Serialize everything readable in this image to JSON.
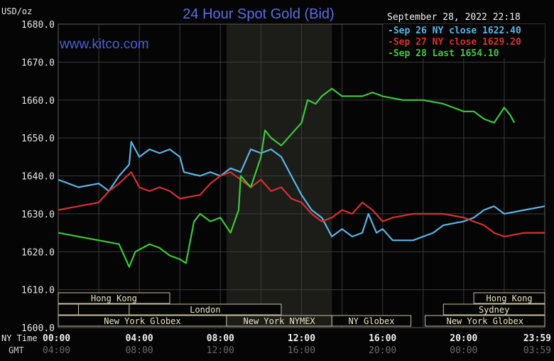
{
  "chart_data": {
    "type": "line",
    "title": "24 Hour Spot Gold (Bid)",
    "watermark": "www.kitco.com",
    "ylabel": "USD/oz",
    "ylim": [
      1600,
      1680
    ],
    "yticks": [
      "1600.0",
      "1610.0",
      "1620.0",
      "1630.0",
      "1640.0",
      "1650.0",
      "1660.0",
      "1670.0",
      "1680.0"
    ],
    "xlim_hours": [
      0,
      24
    ],
    "timestamp": "September 28, 2022 22:18",
    "x_row_labels": {
      "ny": "NY Time",
      "gmt": "GMT"
    },
    "xticks_ny": [
      "00:00",
      "04:00",
      "08:00",
      "12:00",
      "16:00",
      "20:00",
      "23:59"
    ],
    "xticks_gmt": [
      "04:00",
      "08:00",
      "12:00",
      "16:00",
      "20:00",
      "00:00",
      "03:59"
    ],
    "xtick_hours": [
      0,
      4,
      8,
      12,
      16,
      20,
      24
    ],
    "shaded_hours": [
      8.3,
      13.5
    ],
    "grid": true,
    "legend_position": "top-right",
    "series": [
      {
        "name": "Sep 26 NY close 1622.40",
        "color": "#5ab4e6",
        "x": [
          0,
          1,
          2,
          2.5,
          3,
          3.5,
          3.6,
          4,
          4.5,
          5,
          5.5,
          6,
          6.2,
          7,
          7.5,
          8,
          8.5,
          9,
          9.5,
          10,
          10.5,
          11,
          11.5,
          12,
          12.5,
          13,
          13.5,
          14,
          14.5,
          15,
          15.3,
          15.7,
          16,
          16.5,
          17.5,
          18.5,
          19,
          20,
          20.5,
          21,
          21.5,
          22,
          23,
          24
        ],
        "y": [
          1639,
          1637,
          1638,
          1636,
          1640,
          1643,
          1649,
          1645,
          1647,
          1646,
          1647,
          1645,
          1641,
          1640,
          1641,
          1640,
          1642,
          1641,
          1647,
          1646,
          1647,
          1645,
          1640,
          1635,
          1631,
          1629,
          1624,
          1626,
          1624,
          1625,
          1630,
          1625,
          1626,
          1623,
          1623,
          1625,
          1627,
          1628,
          1629,
          1631,
          1632,
          1630,
          1631,
          1632
        ]
      },
      {
        "name": "Sep 27 NY close 1629.20",
        "color": "#d83030",
        "x": [
          0,
          1,
          2,
          2.5,
          3,
          3.6,
          4,
          4.5,
          5,
          5.5,
          6,
          7,
          7.5,
          8,
          8.5,
          9,
          9.5,
          10,
          10.5,
          11,
          11.5,
          12,
          12.5,
          13,
          13.5,
          14,
          14.5,
          15,
          15.5,
          16,
          16.5,
          17.5,
          19,
          20,
          20.5,
          21,
          21.5,
          22,
          23,
          24
        ],
        "y": [
          1631,
          1632,
          1633,
          1636,
          1638,
          1641,
          1637,
          1636,
          1637,
          1636,
          1634,
          1635,
          1638,
          1640,
          1641,
          1639,
          1637,
          1639,
          1636,
          1637,
          1634,
          1633,
          1630,
          1628,
          1629,
          1631,
          1630,
          1633,
          1631,
          1628,
          1629,
          1630,
          1630,
          1629,
          1628,
          1627,
          1625,
          1624,
          1625,
          1625
        ]
      },
      {
        "name": "Sep 28 Last 1654.10",
        "color": "#3cc83c",
        "x": [
          0,
          1,
          2,
          3,
          3.5,
          3.8,
          4.5,
          5,
          5.5,
          6,
          6.3,
          6.7,
          7,
          7.5,
          8,
          8.5,
          8.9,
          9,
          9.5,
          10,
          10.2,
          10.5,
          11,
          11.5,
          12,
          12.3,
          12.7,
          13,
          13.5,
          14,
          15,
          15.5,
          16,
          17,
          18,
          19,
          20,
          20.5,
          21,
          21.5,
          22,
          22.3,
          22.5
        ],
        "y": [
          1625,
          1624,
          1623,
          1622,
          1616,
          1620,
          1622,
          1621,
          1619,
          1618,
          1617,
          1628,
          1630,
          1628,
          1629,
          1625,
          1631,
          1640,
          1637,
          1645,
          1652,
          1650,
          1648,
          1651,
          1654,
          1660,
          1659,
          1661,
          1663,
          1661,
          1661,
          1662,
          1661,
          1660,
          1660,
          1659,
          1657,
          1657,
          1655,
          1654,
          1658,
          1656,
          1654
        ]
      }
    ],
    "sessions": [
      {
        "label": "Hong Kong",
        "row": 0,
        "start": 0,
        "end": 5.5
      },
      {
        "label": "Hong Kong",
        "row": 0,
        "start": 20.5,
        "end": 24
      },
      {
        "label": "",
        "row": 1,
        "start": 0,
        "end": 1
      },
      {
        "label": "",
        "row": 1,
        "start": 1,
        "end": 3.5
      },
      {
        "label": "London",
        "row": 1,
        "start": 3.5,
        "end": 11
      },
      {
        "label": "Sydney",
        "row": 1,
        "start": 19,
        "end": 24
      },
      {
        "label": "New York Globex",
        "row": 2,
        "start": 0,
        "end": 8.3
      },
      {
        "label": "New York NYMEX",
        "row": 2,
        "start": 8.3,
        "end": 13.5
      },
      {
        "label": "NY Globex",
        "row": 2,
        "start": 13.5,
        "end": 17.4
      },
      {
        "label": "New York Globex",
        "row": 2,
        "start": 18.1,
        "end": 24
      }
    ]
  }
}
